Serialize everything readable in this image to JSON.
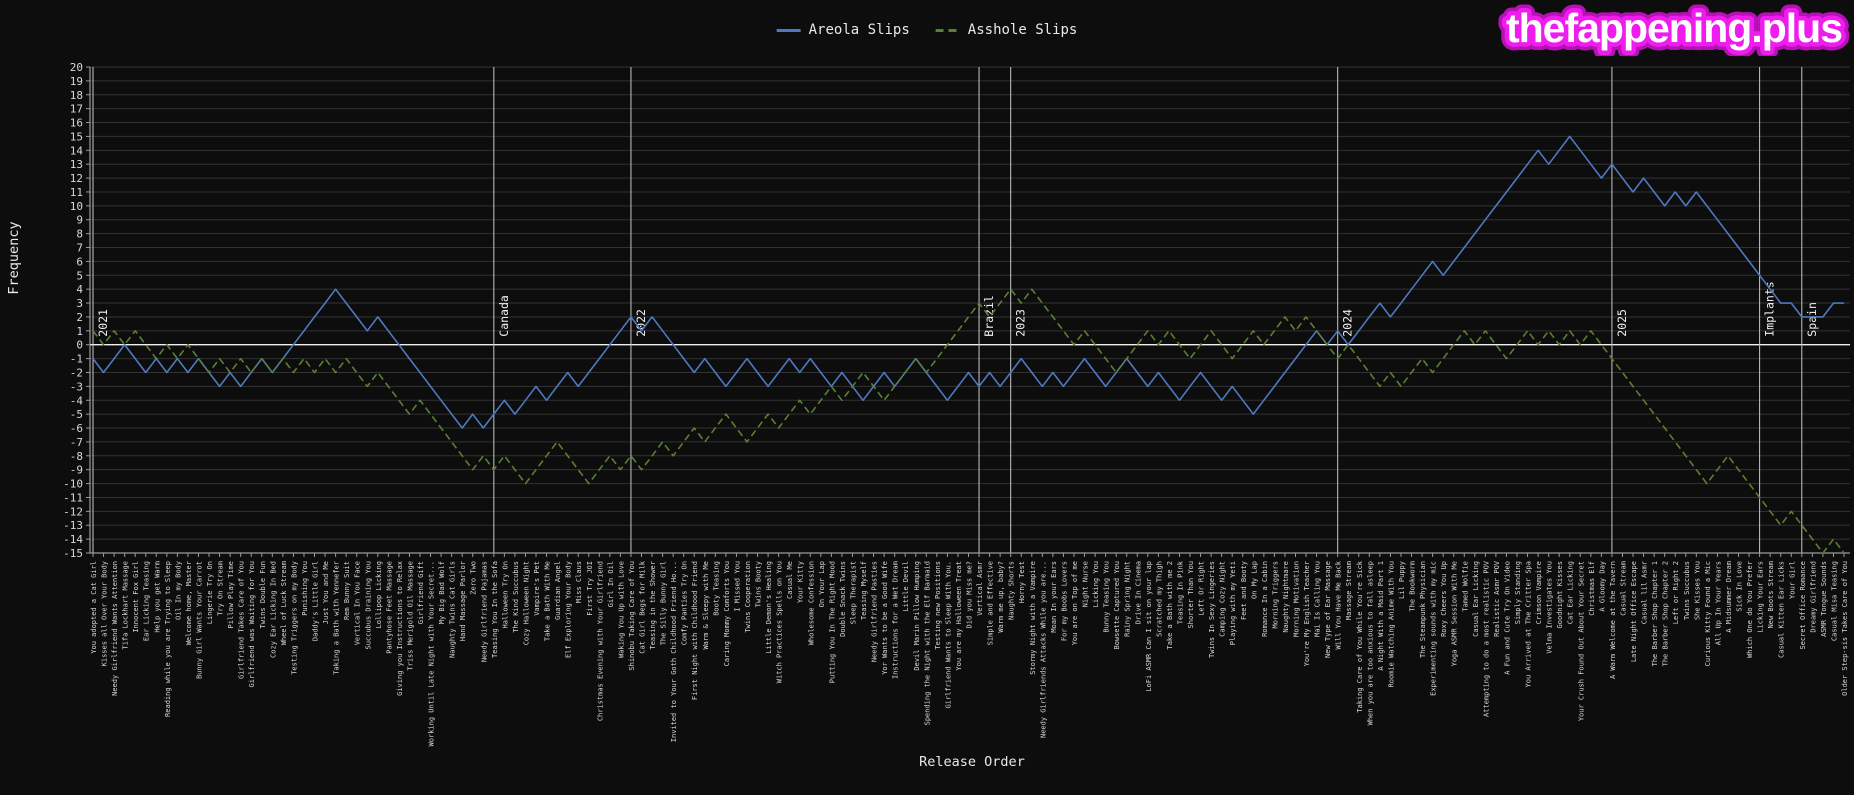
{
  "watermark": {
    "text": "thefappening.plus",
    "outline_color": "#e616e6",
    "fill_color": "#ffffff"
  },
  "legend": [
    {
      "label": "Areola Slips",
      "color": "#4d79c0",
      "style": "solid"
    },
    {
      "label": "Asshole Slips",
      "color": "#5a8032",
      "style": "dashed"
    }
  ],
  "chart_data": {
    "type": "line",
    "title": "",
    "xlabel": "Release Order",
    "ylabel": "Frequency",
    "ylim": [
      -15,
      20
    ],
    "ytick_step": 1,
    "grid": "horizontal",
    "legend_position": "top-center",
    "colors": {
      "background": "#0d0d0d",
      "grid": "#323232",
      "zero_line": "#f0f0f0",
      "axis": "#9a9a9a",
      "tick_text": "#d8d8d8",
      "annotation_line": "#c8c8c8",
      "annotation_text": "#f0f0f0"
    },
    "annotations": [
      {
        "label": "2021",
        "index": 0
      },
      {
        "label": "Canada",
        "index": 38
      },
      {
        "label": "2022",
        "index": 51
      },
      {
        "label": "Brazil",
        "index": 84
      },
      {
        "label": "2023",
        "index": 87
      },
      {
        "label": "2024",
        "index": 118
      },
      {
        "label": "2025",
        "index": 144
      },
      {
        "label": "Implants",
        "index": 158
      },
      {
        "label": "Spain",
        "index": 162
      }
    ],
    "categories": [
      "You adopted a Cat Girl",
      "Kisses all Over Your Body",
      "Needy Girlfriend Wants Attention",
      "Tifa Lockhart Massage",
      "Innocent Fox Girl",
      "Ear Licking Teasing",
      "Help you get Warm",
      "Reading while you are Trying to Sleep",
      "Oil In my Body",
      "Welcome home, Master",
      "Bunny Girl Wants Your Carrot",
      "Lingerie Try On",
      "Try On Stream",
      "Pillow Play Time",
      "Girlfriend Takes Care of You",
      "Girlfriend was Waiting for You",
      "Twins Double Fun",
      "Cozy Ear Licking In Bed",
      "Wheel of Luck Stream",
      "Testing Triggers on my Body",
      "Punishing You",
      "Daddy's Little Girl",
      "Just You and Me",
      "Taking a Bath with Yennefer",
      "Rem Bunny Suit",
      "Vertical In You Face",
      "Succubus Draining You",
      "Lollipop Licking",
      "Pantyhose Feet Massage",
      "Giving you Instructions to Relax",
      "Triss Merigold Oil Massage",
      "Girlfriend Gift",
      "Working Until Late Night with Your Secret...",
      "My Big Bad Wolf",
      "Naughty Twins Cat Girls",
      "Hand Massage Parlor",
      "Zero Two",
      "Needy Girlfriend Pajamas",
      "Teasing You In the Sofa",
      "Halloween Try On",
      "The Kind Succubus",
      "Cozy Halloween Night",
      "Vampire's Pet",
      "Take a Bath With Me",
      "Guardian Angel",
      "Elf Exploring Your Body",
      "Miss Claus",
      "First Try JOI",
      "Christmas Evening with Your Girlfriend",
      "Girl In Oil",
      "Waking You Up with Love",
      "Shinobu Taking Care of You",
      "Cat Girl Begs for Milk",
      "Teasing in the Shower",
      "The Silly Bunny Girl",
      "Invited to Your Goth Childhood Friend Ho...",
      "Comfy Panties Try On",
      "First Night with Childhood Friend",
      "Warm & Sleepy with Me",
      "Booty Teasing",
      "Caring Mommy Comforts You",
      "I Missed You",
      "Twins Cooperation",
      "Twins Booty",
      "Little Demon's Healing",
      "Witch Practices Spells on You",
      "Casual Me",
      "Your Kitty",
      "Wholesome Confession",
      "On Your Lap",
      "Putting You In The Right Mood",
      "Double Snack Twins",
      "Sleep Therapist",
      "Teasing Myself",
      "Needy Girlfriend Pasties",
      "Yor Wants to be a Good Wife",
      "Instructions for a Wet Dream",
      "Little Devil",
      "Devil Marin Pillow Humping",
      "Spending the Night with the Elf Barmaid",
      "Testing new Positions",
      "Girlfriend Wants to Sleep With You.",
      "You are my Halloween Treat",
      "Did you Miss me?",
      "Vertical Asmr",
      "Simple and Effective",
      "Warm me up, baby?",
      "Naughty Shorts",
      "Horny Test",
      "Stormy Night with a Vampire",
      "Needy Girlfriends Attacks While you are...",
      "Moan In your Ears",
      "For my Boobs Lovers",
      "You are on Top of me",
      "Night Nurse",
      "Licking You",
      "Bunny Teasing You",
      "Bowsette Captured You",
      "Rainy Spring Night",
      "Drive In Cinema",
      "LoFi ASMR Can I sit on your lap",
      "Scratched my Thigh",
      "Take a Bath with me 2",
      "Teasing In Pink",
      "Shorter Than You",
      "Left Or Right",
      "Twins In Sexy Lingeries",
      "Camping Cozy Night",
      "Playing with my Yeti",
      "Feet and Booty",
      "On My Lap",
      "Romance In a Cabin",
      "Morning Triggers",
      "Naughty Nightmare",
      "Morning Motivation",
      "You're My English Teacher",
      "Mai Is Calling You",
      "New Type of Ear Massage",
      "Will You Have Me Back",
      "Massage Stream",
      "Taking Care of You While You're Sick",
      "When you are too anxious to fall asleep",
      "A Night With a Maid Part 1",
      "Roomie Watching Anime With You",
      "Lil Puppy",
      "The Bookworm",
      "The Steampunk Physician",
      "Experimenting sounds with my mic",
      "Roxy Cheers You Up",
      "Yoga ASMR Session With Me",
      "Tamed Wolfie",
      "Casual Ear Licking",
      "Attempting to do a most realistic POV",
      "Realistic Asmr POV",
      "A Fun and Cute Try On Video",
      "Simply Standing",
      "You Arrived at The Critter Spa",
      "Crimson Vampire",
      "Velma Investigates You",
      "Goodnight Kisses",
      "Cat Ear Licking",
      "Your Crush Found Out About Your Secret",
      "Christmas Elf",
      "A Gloomy Day",
      "A Warm Welcome at the Tavern",
      "Casual Stream",
      "Late Night Office Escape",
      "Casual lil Asmr",
      "The Barber Shop Chapter 1",
      "The Barber Shop Chapter 2",
      "Left or Right 2",
      "Twins Succubus",
      "She Kisses You",
      "Curious Kitty Found a Mic",
      "All Up In Your Years",
      "A Midsummer Dream",
      "Sick In Love",
      "Which One do You Prefer",
      "Licking Your Ears",
      "New Boots Stream",
      "Casual Kitten Ear Licks",
      "Your Girl",
      "Secret Office Romance",
      "Dreamy Girlfriend",
      "ASMR Tongue Sounds",
      "Casual Misa Teasing",
      "Older Step-sis Takes Care of You"
    ],
    "series": [
      {
        "name": "Areola Slips",
        "color": "#4d79c0",
        "style": "solid",
        "values": [
          -1,
          -2,
          -1,
          0,
          -1,
          -2,
          -1,
          -2,
          -1,
          -2,
          -1,
          -2,
          -3,
          -2,
          -3,
          -2,
          -1,
          -2,
          -1,
          0,
          1,
          2,
          3,
          4,
          3,
          2,
          1,
          2,
          1,
          0,
          -1,
          -2,
          -3,
          -4,
          -5,
          -6,
          -5,
          -6,
          -5,
          -4,
          -5,
          -4,
          -3,
          -4,
          -3,
          -2,
          -3,
          -2,
          -1,
          0,
          1,
          2,
          1,
          2,
          1,
          0,
          -1,
          -2,
          -1,
          -2,
          -3,
          -2,
          -1,
          -2,
          -3,
          -2,
          -1,
          -2,
          -1,
          -2,
          -3,
          -2,
          -3,
          -4,
          -3,
          -2,
          -3,
          -2,
          -1,
          -2,
          -3,
          -4,
          -3,
          -2,
          -3,
          -2,
          -3,
          -2,
          -1,
          -2,
          -3,
          -2,
          -3,
          -2,
          -1,
          -2,
          -3,
          -2,
          -1,
          -2,
          -3,
          -2,
          -3,
          -4,
          -3,
          -2,
          -3,
          -4,
          -3,
          -4,
          -5,
          -4,
          -3,
          -2,
          -1,
          0,
          1,
          0,
          1,
          0,
          1,
          2,
          3,
          2,
          3,
          4,
          5,
          6,
          5,
          6,
          7,
          8,
          9,
          10,
          11,
          12,
          13,
          14,
          13,
          14,
          15,
          14,
          13,
          12,
          13,
          12,
          11,
          12,
          11,
          10,
          11,
          10,
          11,
          10,
          9,
          8,
          7,
          6,
          5,
          4,
          3,
          3,
          2,
          2,
          2,
          3,
          3
        ]
      },
      {
        "name": "Asshole Slips",
        "color": "#5a8032",
        "style": "dashed",
        "values": [
          1,
          0,
          1,
          0,
          1,
          0,
          -1,
          0,
          -1,
          0,
          -1,
          -2,
          -1,
          -2,
          -1,
          -2,
          -1,
          -2,
          -1,
          -2,
          -1,
          -2,
          -1,
          -2,
          -1,
          -2,
          -3,
          -2,
          -3,
          -4,
          -5,
          -4,
          -5,
          -6,
          -7,
          -8,
          -9,
          -8,
          -9,
          -8,
          -9,
          -10,
          -9,
          -8,
          -7,
          -8,
          -9,
          -10,
          -9,
          -8,
          -9,
          -8,
          -9,
          -8,
          -7,
          -8,
          -7,
          -6,
          -7,
          -6,
          -5,
          -6,
          -7,
          -6,
          -5,
          -6,
          -5,
          -4,
          -5,
          -4,
          -3,
          -4,
          -3,
          -2,
          -3,
          -4,
          -3,
          -2,
          -1,
          -2,
          -1,
          0,
          1,
          2,
          3,
          2,
          3,
          4,
          3,
          4,
          3,
          2,
          1,
          0,
          1,
          0,
          -1,
          -2,
          -1,
          0,
          1,
          0,
          1,
          0,
          -1,
          0,
          1,
          0,
          -1,
          0,
          1,
          0,
          1,
          2,
          1,
          2,
          1,
          0,
          -1,
          0,
          -1,
          -2,
          -3,
          -2,
          -3,
          -2,
          -1,
          -2,
          -1,
          0,
          1,
          0,
          1,
          0,
          -1,
          0,
          1,
          0,
          1,
          0,
          1,
          0,
          1,
          0,
          -1,
          -2,
          -3,
          -4,
          -5,
          -6,
          -7,
          -8,
          -9,
          -10,
          -9,
          -8,
          -9,
          -10,
          -11,
          -12,
          -13,
          -12,
          -13,
          -14,
          -15,
          -14,
          -15
        ]
      }
    ]
  }
}
